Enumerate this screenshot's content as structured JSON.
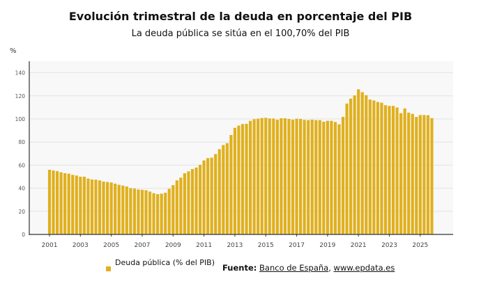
{
  "chart_data": {
    "type": "bar",
    "title": "Evolución trimestral de la deuda en porcentaje del PIB",
    "subtitle": "La deuda pública se sitúa en el 100,70% del PIB",
    "ylabel": "%",
    "xlabel": "",
    "ylim": [
      0,
      150
    ],
    "yticks": [
      0,
      20,
      40,
      60,
      80,
      100,
      120,
      140
    ],
    "xticks": [
      "2001",
      "2003",
      "2005",
      "2007",
      "2009",
      "2011",
      "2013",
      "2015",
      "2017",
      "2019",
      "2021",
      "2023",
      "2025"
    ],
    "grid": true,
    "legend_position": "bottom-left",
    "color": "#E0B01E",
    "series": [
      {
        "name": "Deuda pública (% del PIB)",
        "start": "2001-Q1",
        "frequency": "quarterly",
        "values": [
          56,
          55.4,
          54.8,
          53.8,
          53,
          52.6,
          51.6,
          51,
          50,
          50,
          48.4,
          47.6,
          47.4,
          46.8,
          45.8,
          45.4,
          45,
          44,
          43,
          42.3,
          41.5,
          40.1,
          39.7,
          38.9,
          38.7,
          38.3,
          37.1,
          35.7,
          34.9,
          35.3,
          36.1,
          39.5,
          42.7,
          46.8,
          49.2,
          53,
          54.6,
          56.6,
          57.9,
          60.3,
          64.1,
          66.1,
          66.5,
          69.6,
          73.8,
          77.4,
          79,
          86.1,
          92.3,
          94.2,
          95.6,
          95.8,
          98.4,
          99.8,
          100.2,
          100.8,
          101,
          100.4,
          100.4,
          99.4,
          100.6,
          100.6,
          100,
          99.4,
          100.2,
          100,
          99.2,
          99,
          99.4,
          99,
          99,
          97.6,
          98.4,
          98.4,
          97.4,
          95.4,
          101.8,
          113.3,
          117.6,
          120.4,
          125.7,
          123.2,
          120.6,
          116.8,
          116,
          114.7,
          114.1,
          111.9,
          111.3,
          111.3,
          109.9,
          105,
          109.1,
          105.5,
          104.4,
          101.8,
          103.4,
          103.4,
          103.2,
          100.7
        ]
      }
    ]
  },
  "footer": {
    "source_label": "Fuente:",
    "source_1": "Banco de España",
    "separator": ",",
    "source_2": "www.epdata.es"
  }
}
